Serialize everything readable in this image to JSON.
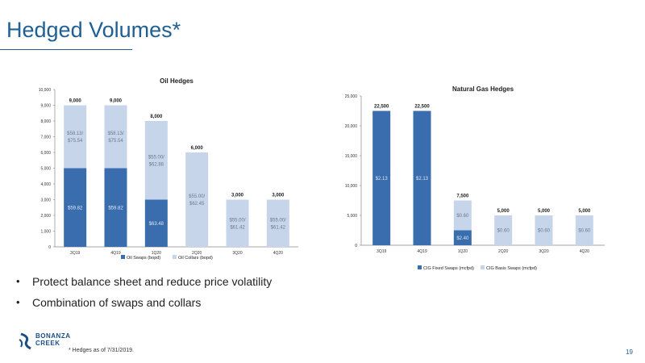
{
  "page": {
    "title": "Hedged Volumes*",
    "bullets": [
      "Protect balance sheet and reduce price volatility",
      "Combination of swaps and collars"
    ],
    "footnote": "* Hedges as of 7/31/2019.",
    "page_number": "19",
    "logo_lines": [
      "BONANZA",
      "CREEK"
    ]
  },
  "colors": {
    "title": "#1f5f93",
    "swap": "#3a6dad",
    "collar": "#c7d5ea"
  },
  "chart_data": [
    {
      "type": "bar",
      "stacked": true,
      "title": "Oil Hedges",
      "categories": [
        "3Q19",
        "4Q19",
        "1Q20",
        "2Q20",
        "3Q20",
        "4Q20"
      ],
      "ylim": [
        0,
        10000
      ],
      "yticks": [
        "0",
        "1,000",
        "2,000",
        "3,000",
        "4,000",
        "5,000",
        "6,000",
        "7,000",
        "8,000",
        "9,000",
        "10,000"
      ],
      "series": [
        {
          "name": "Oil Swaps (bopd)",
          "values": [
            5000,
            5000,
            3000,
            0,
            0,
            0
          ],
          "labels": [
            "$59.82",
            "$59.82",
            "$63.48",
            "",
            "",
            ""
          ]
        },
        {
          "name": "Oil Collars (bopd)",
          "values": [
            4000,
            4000,
            5000,
            6000,
            3000,
            3000
          ],
          "labels": [
            [
              "$58.13/",
              "$75.54"
            ],
            [
              "$58.13/",
              "$75.54"
            ],
            [
              "$55.00/",
              "$62.88"
            ],
            [
              "$55.00/",
              "$62.45"
            ],
            [
              "$55.00/",
              "$61.42"
            ],
            [
              "$55.00/",
              "$61.42"
            ]
          ]
        }
      ],
      "totals": [
        "9,000",
        "9,000",
        "8,000",
        "6,000",
        "3,000",
        "3,000"
      ]
    },
    {
      "type": "bar",
      "stacked": true,
      "title": "Natural Gas Hedges",
      "categories": [
        "3Q19",
        "4Q19",
        "1Q20",
        "2Q20",
        "3Q20",
        "4Q20"
      ],
      "ylim": [
        0,
        25000
      ],
      "yticks": [
        "0",
        "5,000",
        "10,000",
        "15,000",
        "20,000",
        "25,000"
      ],
      "series": [
        {
          "name": "CIG Fixed Swaps (mcfpd)",
          "values": [
            22500,
            22500,
            2500,
            0,
            0,
            0
          ],
          "labels": [
            "$2.13",
            "$2.13",
            "$2.40",
            "",
            "",
            ""
          ]
        },
        {
          "name": "CIG Basis Swaps (mcfpd)",
          "values": [
            0,
            0,
            5000,
            5000,
            5000,
            5000
          ],
          "labels": [
            "",
            "",
            "$0.60",
            "$0.60",
            "$0.60",
            "$0.60"
          ]
        }
      ],
      "totals": [
        "22,500",
        "22,500",
        "7,500",
        "5,000",
        "5,000",
        "5,000"
      ]
    }
  ]
}
